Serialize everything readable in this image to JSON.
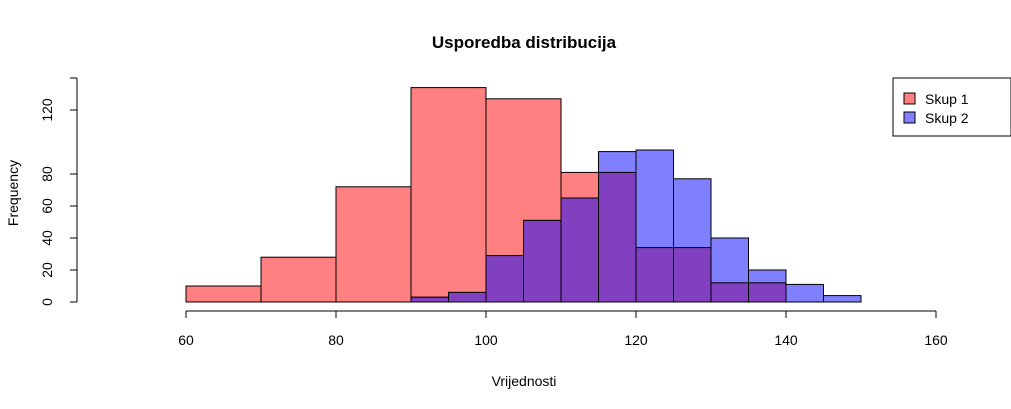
{
  "chart_data": {
    "type": "bar",
    "subtype": "histogram-overlay",
    "title": "Usporedba distribucija",
    "xlabel": "Vrijednosti",
    "ylabel": "Frequency",
    "xlim": [
      60,
      160
    ],
    "ylim": [
      0,
      140
    ],
    "x_ticks": [
      60,
      80,
      100,
      120,
      140,
      160
    ],
    "y_ticks": [
      0,
      20,
      40,
      60,
      80,
      120
    ],
    "grid": false,
    "legend_position": "top-right",
    "series": [
      {
        "name": "Skup 1",
        "color": "#ff8080",
        "bins": [
          {
            "start": 60,
            "end": 70,
            "count": 10
          },
          {
            "start": 70,
            "end": 80,
            "count": 28
          },
          {
            "start": 80,
            "end": 90,
            "count": 72
          },
          {
            "start": 90,
            "end": 100,
            "count": 134
          },
          {
            "start": 100,
            "end": 110,
            "count": 127
          },
          {
            "start": 110,
            "end": 120,
            "count": 81
          },
          {
            "start": 120,
            "end": 130,
            "count": 34
          },
          {
            "start": 130,
            "end": 140,
            "count": 12
          }
        ]
      },
      {
        "name": "Skup 2",
        "color": "#8080ff",
        "bins": [
          {
            "start": 90,
            "end": 95,
            "count": 3
          },
          {
            "start": 95,
            "end": 100,
            "count": 6
          },
          {
            "start": 100,
            "end": 105,
            "count": 29
          },
          {
            "start": 105,
            "end": 110,
            "count": 51
          },
          {
            "start": 110,
            "end": 115,
            "count": 65
          },
          {
            "start": 115,
            "end": 120,
            "count": 94
          },
          {
            "start": 120,
            "end": 125,
            "count": 95
          },
          {
            "start": 125,
            "end": 130,
            "count": 77
          },
          {
            "start": 130,
            "end": 135,
            "count": 40
          },
          {
            "start": 135,
            "end": 140,
            "count": 20
          },
          {
            "start": 140,
            "end": 145,
            "count": 11
          },
          {
            "start": 145,
            "end": 150,
            "count": 4
          }
        ]
      }
    ],
    "overlap_color": "#8040c0"
  }
}
